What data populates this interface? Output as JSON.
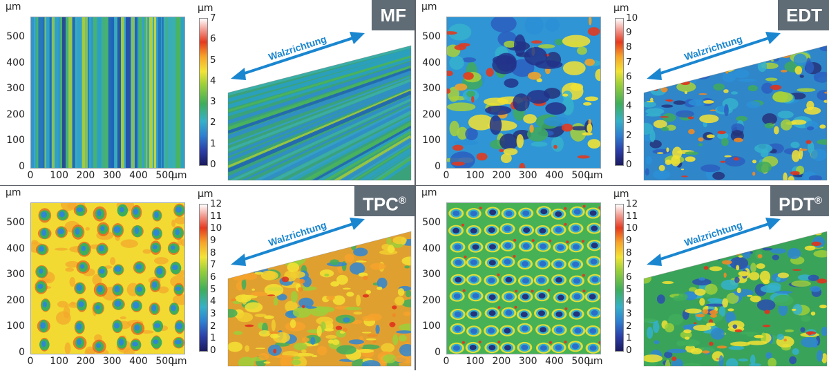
{
  "panels": [
    {
      "id": "mf",
      "label": "MF",
      "label_sup": "",
      "unit": "µm",
      "y_ticks": [
        "500",
        "400",
        "300",
        "200",
        "100",
        "0"
      ],
      "x_ticks": [
        "0",
        "100",
        "200",
        "300",
        "400",
        "500"
      ],
      "colorbar_max": 7,
      "colorbar_ticks": [
        "7",
        "6",
        "5",
        "4",
        "3",
        "2",
        "1",
        "0"
      ],
      "direction_label": "Walzrichtung",
      "texture": "stripes"
    },
    {
      "id": "edt",
      "label": "EDT",
      "label_sup": "",
      "unit": "µm",
      "y_ticks": [
        "500",
        "400",
        "300",
        "200",
        "100",
        "0"
      ],
      "x_ticks": [
        "0",
        "100",
        "200",
        "300",
        "400",
        "500"
      ],
      "colorbar_max": 10,
      "colorbar_ticks": [
        "10",
        "9",
        "8",
        "7",
        "6",
        "5",
        "4",
        "3",
        "2",
        "1",
        "0"
      ],
      "direction_label": "Walzrichtung",
      "texture": "blobs"
    },
    {
      "id": "tpc",
      "label": "TPC",
      "label_sup": "®",
      "unit": "µm",
      "y_ticks": [
        "500",
        "400",
        "300",
        "200",
        "100",
        "0"
      ],
      "x_ticks": [
        "0",
        "100",
        "200",
        "300",
        "400",
        "500"
      ],
      "colorbar_max": 12,
      "colorbar_ticks": [
        "12",
        "11",
        "10",
        "9",
        "8",
        "7",
        "6",
        "5",
        "4",
        "3",
        "2",
        "1",
        "0"
      ],
      "direction_label": "Walzrichtung",
      "texture": "cells"
    },
    {
      "id": "pdt",
      "label": "PDT",
      "label_sup": "®",
      "unit": "µm",
      "y_ticks": [
        "500",
        "400",
        "300",
        "200",
        "100",
        "0"
      ],
      "x_ticks": [
        "0",
        "100",
        "200",
        "300",
        "400",
        "500"
      ],
      "colorbar_max": 12,
      "colorbar_ticks": [
        "12",
        "11",
        "10",
        "9",
        "8",
        "7",
        "6",
        "5",
        "4",
        "3",
        "2",
        "1",
        "0"
      ],
      "direction_label": "Walzrichtung",
      "texture": "grid"
    }
  ],
  "colors": {
    "accent_arrow": "#1a86d0",
    "badge_bg": "#5f6b75",
    "divider": "#5c6268"
  }
}
